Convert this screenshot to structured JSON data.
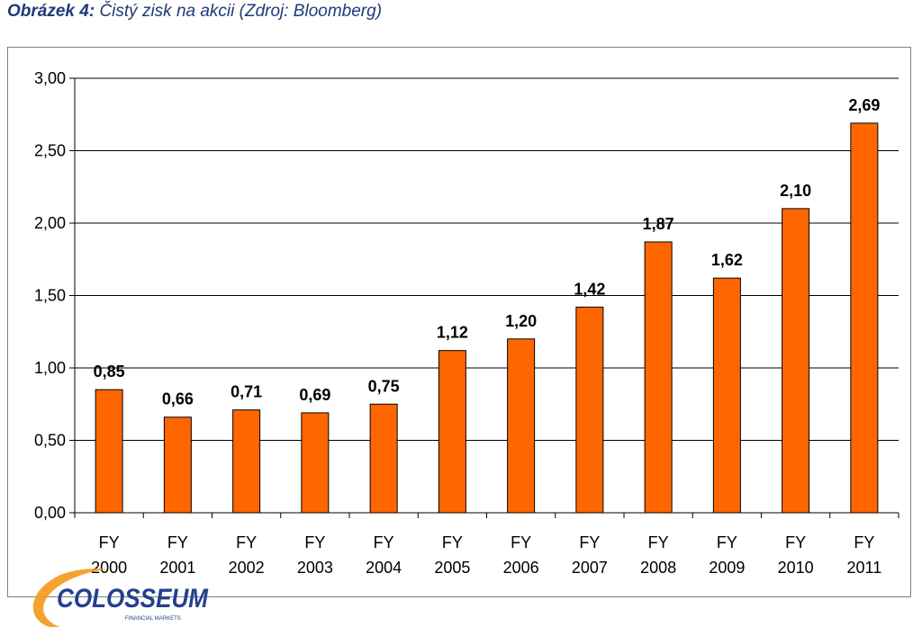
{
  "caption": {
    "prefix": "Obrázek 4:",
    "text": "Čistý zisk na akcii (Zdroj: Bloomberg)"
  },
  "logo": {
    "text": "COLOSSEUM",
    "subtext": "FINANCIAL MARKETS"
  },
  "colors": {
    "bar_fill": "#FF6600",
    "bar_stroke": "#000000",
    "grid": "#000000",
    "caption": "#1f3a78"
  },
  "chart_data": {
    "type": "bar",
    "title": "",
    "xlabel": "",
    "ylabel": "",
    "categories": [
      [
        "FY",
        "2000"
      ],
      [
        "FY",
        "2001"
      ],
      [
        "FY",
        "2002"
      ],
      [
        "FY",
        "2003"
      ],
      [
        "FY",
        "2004"
      ],
      [
        "FY",
        "2005"
      ],
      [
        "FY",
        "2006"
      ],
      [
        "FY",
        "2007"
      ],
      [
        "FY",
        "2008"
      ],
      [
        "FY",
        "2009"
      ],
      [
        "FY",
        "2010"
      ],
      [
        "FY",
        "2011"
      ]
    ],
    "values": [
      0.85,
      0.66,
      0.71,
      0.69,
      0.75,
      1.12,
      1.2,
      1.42,
      1.87,
      1.62,
      2.1,
      2.69
    ],
    "value_labels": [
      "0,85",
      "0,66",
      "0,71",
      "0,69",
      "0,75",
      "1,12",
      "1,20",
      "1,42",
      "1,87",
      "1,62",
      "2,10",
      "2,69"
    ],
    "yticks": [
      0,
      0.5,
      1.0,
      1.5,
      2.0,
      2.5,
      3.0
    ],
    "ytick_labels": [
      "0,00",
      "0,50",
      "1,00",
      "1,50",
      "2,00",
      "2,50",
      "3,00"
    ],
    "ylim": [
      0,
      3
    ],
    "grid": true,
    "legend": false
  }
}
